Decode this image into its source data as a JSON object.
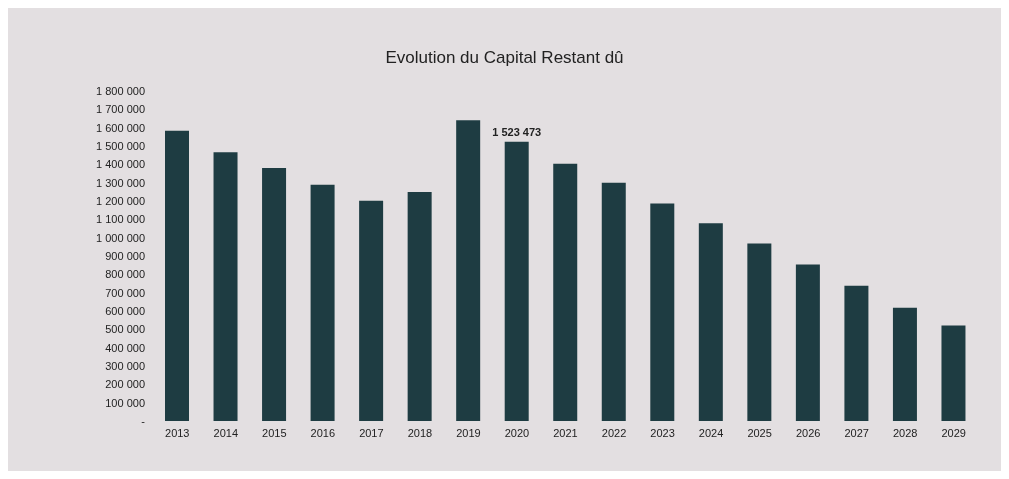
{
  "chart_data": {
    "type": "bar",
    "title": "Evolution du Capital Restant dû",
    "categories": [
      "2013",
      "2014",
      "2015",
      "2016",
      "2017",
      "2018",
      "2019",
      "2020",
      "2021",
      "2022",
      "2023",
      "2024",
      "2025",
      "2026",
      "2027",
      "2028",
      "2029"
    ],
    "series": [
      {
        "color": "#1e3c42",
        "values": [
          1583000,
          1466000,
          1380000,
          1289000,
          1202000,
          1249000,
          1640000,
          1523473,
          1403000,
          1299000,
          1187000,
          1078000,
          968000,
          853000,
          738000,
          618000,
          521000
        ],
        "value_labels": [
          null,
          null,
          null,
          null,
          null,
          null,
          null,
          "1 523 473",
          null,
          null,
          null,
          null,
          null,
          null,
          null,
          null,
          null
        ]
      }
    ],
    "ylim": [
      0,
      1800000
    ],
    "yticks": [
      {
        "value": 0,
        "label": "-"
      },
      {
        "value": 100000,
        "label": "100 000"
      },
      {
        "value": 200000,
        "label": "200 000"
      },
      {
        "value": 300000,
        "label": "300 000"
      },
      {
        "value": 400000,
        "label": "400 000"
      },
      {
        "value": 500000,
        "label": "500 000"
      },
      {
        "value": 600000,
        "label": "600 000"
      },
      {
        "value": 700000,
        "label": "700 000"
      },
      {
        "value": 800000,
        "label": "800 000"
      },
      {
        "value": 900000,
        "label": "900 000"
      },
      {
        "value": 1000000,
        "label": "1 000 000"
      },
      {
        "value": 1100000,
        "label": "1 100 000"
      },
      {
        "value": 1200000,
        "label": "1 200 000"
      },
      {
        "value": 1300000,
        "label": "1 300 000"
      },
      {
        "value": 1400000,
        "label": "1 400 000"
      },
      {
        "value": 1500000,
        "label": "1 500 000"
      },
      {
        "value": 1600000,
        "label": "1 600 000"
      },
      {
        "value": 1700000,
        "label": "1 700 000"
      },
      {
        "value": 1800000,
        "label": "1 800 000"
      }
    ],
    "grid": false,
    "legend": false
  }
}
